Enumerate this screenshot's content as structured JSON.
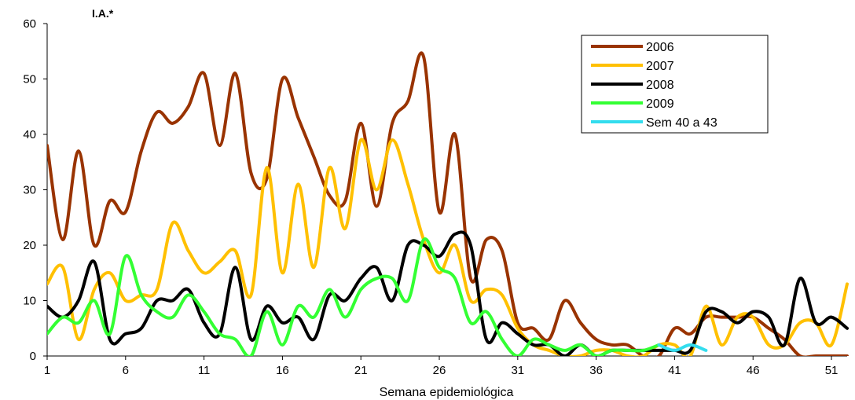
{
  "chart_data": {
    "type": "line",
    "title": "",
    "xlabel": "Semana epidemiológica",
    "ylabel": "I.A.*",
    "xlim": [
      1,
      52
    ],
    "ylim": [
      0,
      60
    ],
    "x_ticks": [
      "1",
      "6",
      "11",
      "16",
      "21",
      "26",
      "31",
      "36",
      "41",
      "46",
      "51"
    ],
    "y_ticks": [
      "0",
      "10",
      "20",
      "30",
      "40",
      "50",
      "60"
    ],
    "grid": false,
    "legend_position": "top-right",
    "series": [
      {
        "name": "2006",
        "color": "#993300",
        "x": [
          1,
          2,
          3,
          4,
          5,
          6,
          7,
          8,
          9,
          10,
          11,
          12,
          13,
          14,
          15,
          16,
          17,
          18,
          19,
          20,
          21,
          22,
          23,
          24,
          25,
          26,
          27,
          28,
          29,
          30,
          31,
          32,
          33,
          34,
          35,
          36,
          37,
          38,
          39,
          40,
          41,
          42,
          43,
          44,
          45,
          46,
          47,
          48,
          49,
          50,
          51,
          52
        ],
        "y": [
          38,
          21,
          37,
          20,
          28,
          26,
          37,
          44,
          42,
          45,
          51,
          38,
          51,
          33,
          32,
          50,
          43,
          36,
          29,
          28,
          42,
          27,
          42,
          46,
          54,
          26,
          40,
          14,
          21,
          19,
          6,
          5,
          3,
          10,
          6,
          3,
          2,
          2,
          0,
          0,
          5,
          4,
          7,
          7,
          7,
          7,
          5,
          3,
          0,
          0,
          0,
          0
        ]
      },
      {
        "name": "2007",
        "color": "#FFC000",
        "x": [
          1,
          2,
          3,
          4,
          5,
          6,
          7,
          8,
          9,
          10,
          11,
          12,
          13,
          14,
          15,
          16,
          17,
          18,
          19,
          20,
          21,
          22,
          23,
          24,
          25,
          26,
          27,
          28,
          29,
          30,
          31,
          32,
          33,
          34,
          35,
          36,
          37,
          38,
          39,
          40,
          41,
          42,
          43,
          44,
          45,
          46,
          47,
          48,
          49,
          50,
          51,
          52
        ],
        "y": [
          13,
          16,
          3,
          12,
          15,
          10,
          11,
          12,
          24,
          19,
          15,
          17,
          19,
          11,
          34,
          15,
          31,
          16,
          34,
          23,
          39,
          30,
          39,
          31,
          21,
          15,
          20,
          10,
          12,
          11,
          5,
          2,
          1,
          0,
          0,
          1,
          1,
          0,
          0,
          2,
          2,
          0,
          9,
          2,
          7,
          7,
          2,
          2,
          6,
          6,
          2,
          13
        ]
      },
      {
        "name": "2008",
        "color": "#000000",
        "x": [
          1,
          2,
          3,
          4,
          5,
          6,
          7,
          8,
          9,
          10,
          11,
          12,
          13,
          14,
          15,
          16,
          17,
          18,
          19,
          20,
          21,
          22,
          23,
          24,
          25,
          26,
          27,
          28,
          29,
          30,
          31,
          32,
          33,
          34,
          35,
          36,
          37,
          38,
          39,
          40,
          41,
          42,
          43,
          44,
          45,
          46,
          47,
          48,
          49,
          50,
          51,
          52
        ],
        "y": [
          9,
          7,
          10,
          17,
          3,
          4,
          5,
          10,
          10,
          12,
          6,
          4,
          16,
          3,
          9,
          6,
          7,
          3,
          11,
          10,
          14,
          16,
          10,
          20,
          20,
          18,
          22,
          20,
          3,
          6,
          4,
          2,
          2,
          0,
          2,
          0,
          1,
          1,
          1,
          1,
          1,
          1,
          8,
          8,
          6,
          8,
          7,
          2,
          14,
          6,
          7,
          5
        ]
      },
      {
        "name": "2009",
        "color": "#33FF33",
        "x": [
          1,
          2,
          3,
          4,
          5,
          6,
          7,
          8,
          9,
          10,
          11,
          12,
          13,
          14,
          15,
          16,
          17,
          18,
          19,
          20,
          21,
          22,
          23,
          24,
          25,
          26,
          27,
          28,
          29,
          30,
          31,
          32,
          33,
          34,
          35,
          36,
          37,
          38,
          39,
          40
        ],
        "y": [
          4,
          7,
          6,
          10,
          4,
          18,
          11,
          8,
          7,
          11,
          8,
          4,
          3,
          0,
          8,
          2,
          9,
          7,
          12,
          7,
          12,
          14,
          14,
          10,
          21,
          16,
          14,
          6,
          8,
          3,
          0,
          3,
          2,
          1,
          2,
          0,
          1,
          1,
          1,
          2
        ]
      },
      {
        "name": "Sem 40 a 43",
        "color": "#33DDEE",
        "x": [
          40,
          41,
          42,
          43
        ],
        "y": [
          2,
          1,
          2,
          1
        ]
      }
    ]
  }
}
